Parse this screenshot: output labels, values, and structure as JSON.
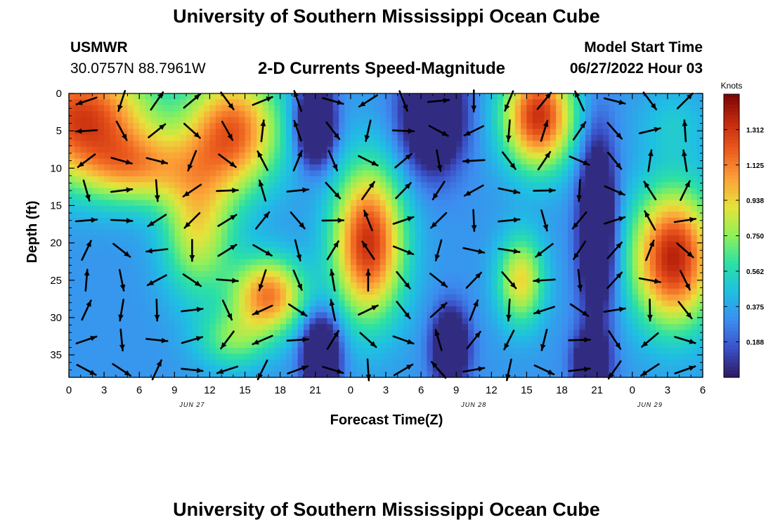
{
  "header": {
    "title": "University of Southern Mississippi Ocean Cube",
    "station_id": "USMWR",
    "station_coords": "30.0757N  88.7961W",
    "subtitle": "2-D Currents Speed-Magnitude",
    "model_start_label": "Model Start Time",
    "model_start_value": "06/27/2022 Hour 03"
  },
  "footer": {
    "title": "University of Southern Mississippi Ocean Cube"
  },
  "chart_data": {
    "type": "heatmap",
    "title": "2-D Currents Speed-Magnitude",
    "xlabel": "Forecast Time(Z)",
    "ylabel": "Depth (ft)",
    "x_tick_labels": [
      "0",
      "3",
      "6",
      "9",
      "12",
      "15",
      "18",
      "21",
      "0",
      "3",
      "6",
      "9",
      "12",
      "15",
      "18",
      "21",
      "0",
      "3",
      "6"
    ],
    "x_date_labels": [
      {
        "label": "JUN 27",
        "hour_offset": 10.5
      },
      {
        "label": "JUN 28",
        "hour_offset": 34.5
      },
      {
        "label": "JUN 29",
        "hour_offset": 49.5
      }
    ],
    "xlim_hours": [
      0,
      54
    ],
    "y_ticks": [
      0,
      5,
      10,
      15,
      20,
      25,
      30,
      35
    ],
    "ylim": [
      0,
      38
    ],
    "y_inverted": true,
    "colorbar": {
      "label": "Knots",
      "ticks": [
        "1.312",
        "1.125",
        "0.938",
        "0.750",
        "0.562",
        "0.375",
        "0.188"
      ],
      "tick_values": [
        1.312,
        1.125,
        0.938,
        0.75,
        0.562,
        0.375,
        0.188
      ],
      "vmin": 0.0,
      "vmax": 1.5,
      "colors": [
        "#2c1a5e",
        "#3b4fc7",
        "#3d8cf0",
        "#1fbfe3",
        "#2ae0a6",
        "#8ef05a",
        "#e6e33a",
        "#fca239",
        "#ec5c1e",
        "#c52a0e",
        "#7a0403"
      ]
    },
    "speed_blobs": [
      {
        "t": 1,
        "d": 3,
        "rt": 6,
        "rd": 8,
        "v": 0.95
      },
      {
        "t": 6,
        "d": 10,
        "rt": 5,
        "rd": 5,
        "v": 0.55
      },
      {
        "t": 14,
        "d": 5,
        "rt": 4,
        "rd": 8,
        "v": 0.85
      },
      {
        "t": 11,
        "d": 18,
        "rt": 3,
        "rd": 9,
        "v": 0.55
      },
      {
        "t": 17,
        "d": 27,
        "rt": 3,
        "rd": 5,
        "v": 0.8
      },
      {
        "t": 14,
        "d": 33,
        "rt": 3,
        "rd": 4,
        "v": 0.35
      },
      {
        "t": 21,
        "d": 4,
        "rt": 1.5,
        "rd": 5,
        "v": -0.9
      },
      {
        "t": 21.5,
        "d": 35,
        "rt": 1.5,
        "rd": 5,
        "v": -0.8
      },
      {
        "t": 25.5,
        "d": 20,
        "rt": 3,
        "rd": 10,
        "v": 1.0
      },
      {
        "t": 31,
        "d": 3,
        "rt": 2.5,
        "rd": 7,
        "v": -0.8
      },
      {
        "t": 32.5,
        "d": 34,
        "rt": 1.5,
        "rd": 5,
        "v": -0.7
      },
      {
        "t": 40,
        "d": 3,
        "rt": 3,
        "rd": 7,
        "v": 1.0
      },
      {
        "t": 38.5,
        "d": 25,
        "rt": 2,
        "rd": 6,
        "v": 0.6
      },
      {
        "t": 45,
        "d": 18,
        "rt": 1.5,
        "rd": 12,
        "v": -0.75
      },
      {
        "t": 44.5,
        "d": 36,
        "rt": 1.5,
        "rd": 4,
        "v": -0.6
      },
      {
        "t": 51.5,
        "d": 22,
        "rt": 3.5,
        "rd": 9,
        "v": 1.05
      },
      {
        "t": 51.5,
        "d": 4,
        "rt": 3,
        "rd": 5,
        "v": 0.15
      }
    ],
    "arrow_times": [
      1.5,
      4.5,
      7.5,
      10.5,
      13.5,
      16.5,
      19.5,
      22.5,
      25.5,
      28.5,
      31.5,
      34.5,
      37.5,
      40.5,
      43.5,
      46.5,
      49.5,
      52.5
    ],
    "arrow_depths": [
      1,
      5,
      9,
      13,
      17,
      21,
      25,
      29,
      33,
      37
    ]
  }
}
